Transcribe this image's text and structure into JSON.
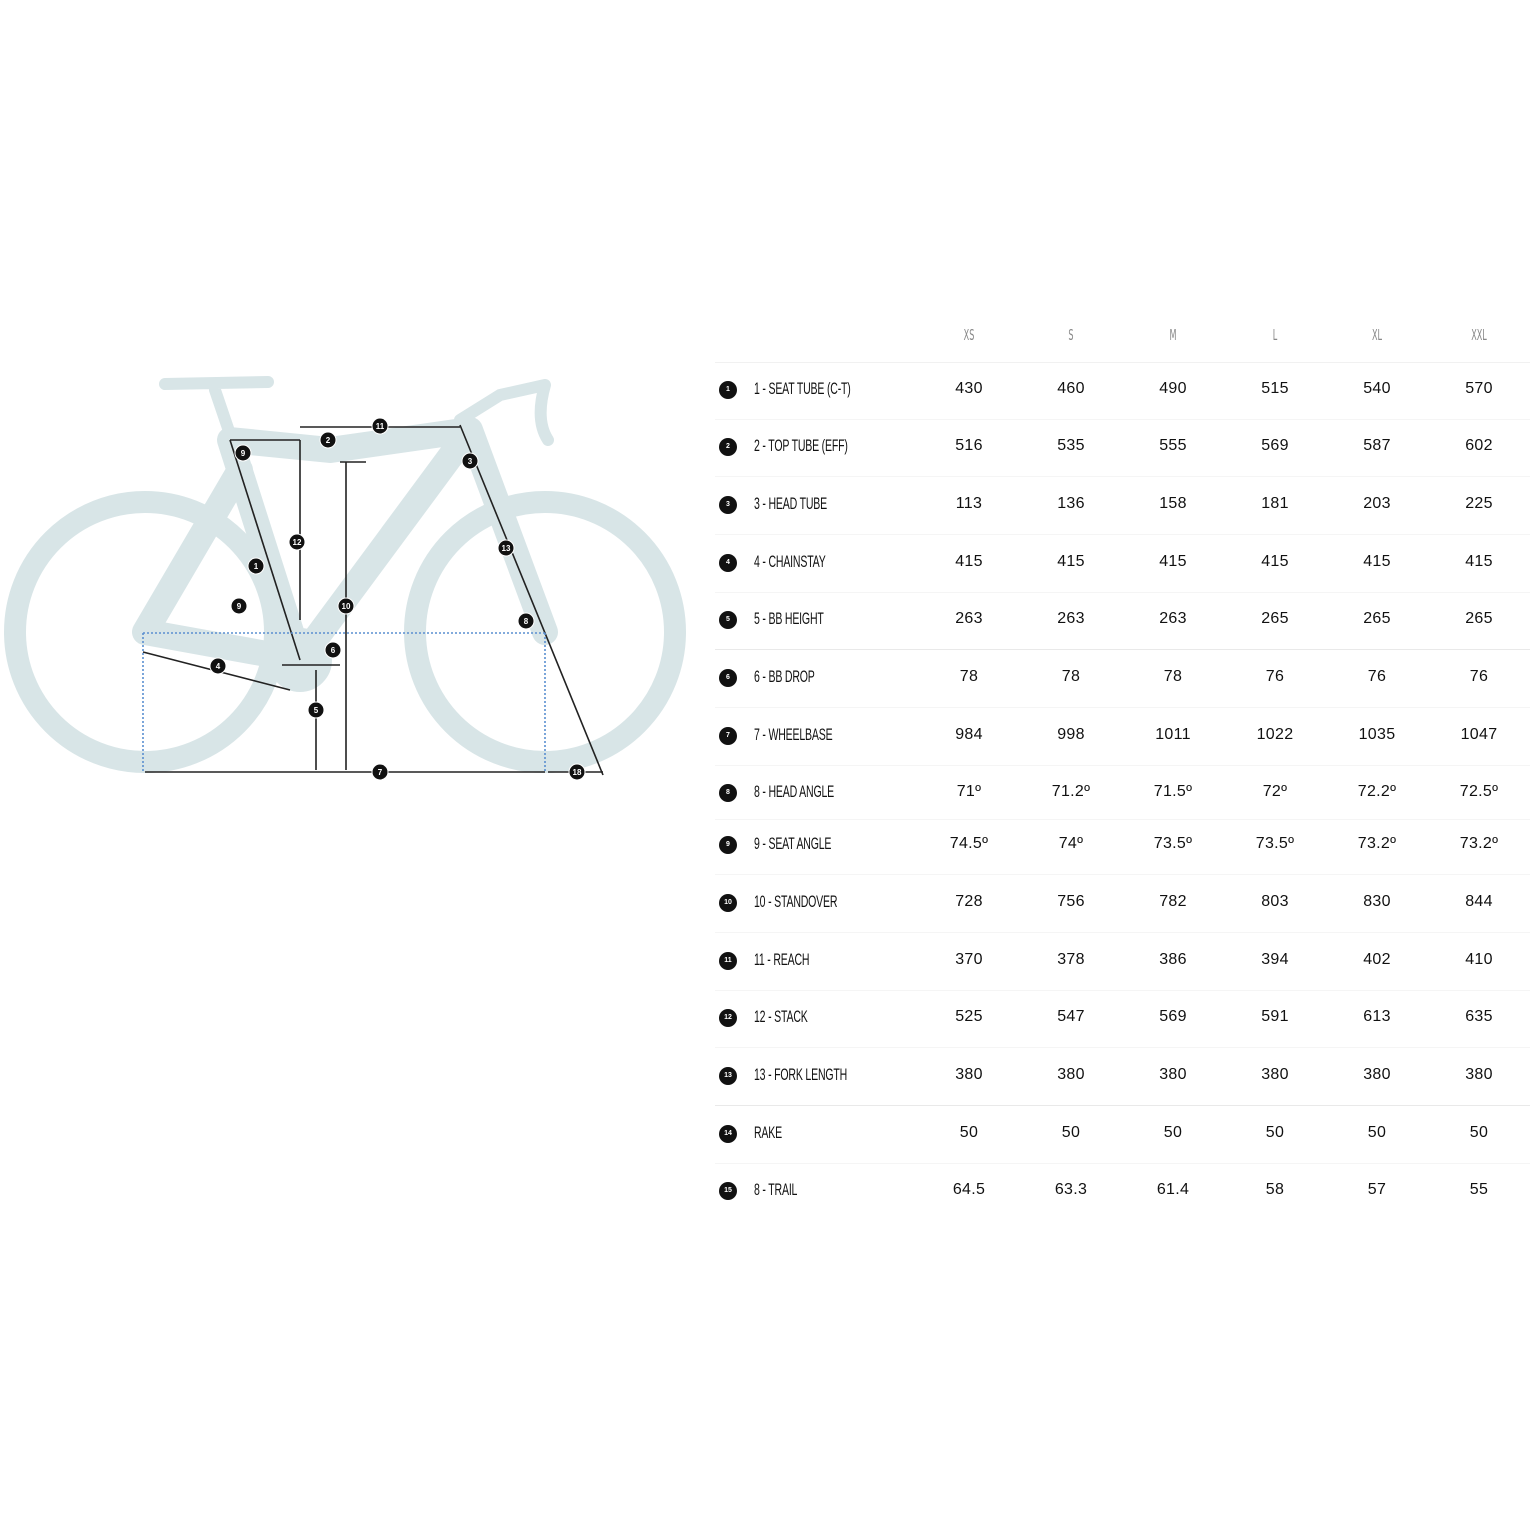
{
  "colors": {
    "bike": "#d8e5e7",
    "lines": "#222222",
    "dotted": "#5a8fd0",
    "badge": "#111111"
  },
  "diagram": {
    "markers": [
      "1",
      "2",
      "3",
      "4",
      "5",
      "6",
      "7",
      "8",
      "9",
      "9",
      "10",
      "11",
      "12",
      "13",
      "18"
    ]
  },
  "table": {
    "sizes": [
      "XS",
      "S",
      "M",
      "L",
      "XL",
      "XXL"
    ],
    "rows": [
      {
        "num": "1",
        "label": "1 - SEAT TUBE (C-T)",
        "values": [
          "430",
          "460",
          "490",
          "515",
          "540",
          "570"
        ]
      },
      {
        "num": "2",
        "label": "2 - TOP TUBE (EFF)",
        "values": [
          "516",
          "535",
          "555",
          "569",
          "587",
          "602"
        ]
      },
      {
        "num": "3",
        "label": "3 - HEAD TUBE",
        "values": [
          "113",
          "136",
          "158",
          "181",
          "203",
          "225"
        ]
      },
      {
        "num": "4",
        "label": "4 - CHAINSTAY",
        "values": [
          "415",
          "415",
          "415",
          "415",
          "415",
          "415"
        ]
      },
      {
        "num": "5",
        "label": "5 - BB HEIGHT",
        "values": [
          "263",
          "263",
          "263",
          "265",
          "265",
          "265"
        ]
      },
      {
        "num": "6",
        "label": "6 - BB DROP",
        "values": [
          "78",
          "78",
          "78",
          "76",
          "76",
          "76"
        ]
      },
      {
        "num": "7",
        "label": "7 - WHEELBASE",
        "values": [
          "984",
          "998",
          "1011",
          "1022",
          "1035",
          "1047"
        ]
      },
      {
        "num": "8",
        "label": "8 - HEAD ANGLE",
        "values": [
          "71º",
          "71.2º",
          "71.5º",
          "72º",
          "72.2º",
          "72.5º"
        ]
      },
      {
        "num": "9",
        "label": "9 - SEAT ANGLE",
        "values": [
          "74.5º",
          "74º",
          "73.5º",
          "73.5º",
          "73.2º",
          "73.2º"
        ]
      },
      {
        "num": "10",
        "label": "10 - STANDOVER",
        "values": [
          "728",
          "756",
          "782",
          "803",
          "830",
          "844"
        ]
      },
      {
        "num": "11",
        "label": "11 - REACH",
        "values": [
          "370",
          "378",
          "386",
          "394",
          "402",
          "410"
        ]
      },
      {
        "num": "12",
        "label": "12 - STACK",
        "values": [
          "525",
          "547",
          "569",
          "591",
          "613",
          "635"
        ]
      },
      {
        "num": "13",
        "label": "13 - FORK LENGTH",
        "values": [
          "380",
          "380",
          "380",
          "380",
          "380",
          "380"
        ]
      },
      {
        "num": "14",
        "label": "RAKE",
        "values": [
          "50",
          "50",
          "50",
          "50",
          "50",
          "50"
        ]
      },
      {
        "num": "15",
        "label": "8 - TRAIL",
        "values": [
          "64.5",
          "63.3",
          "61.4",
          "58",
          "57",
          "55"
        ]
      }
    ]
  }
}
